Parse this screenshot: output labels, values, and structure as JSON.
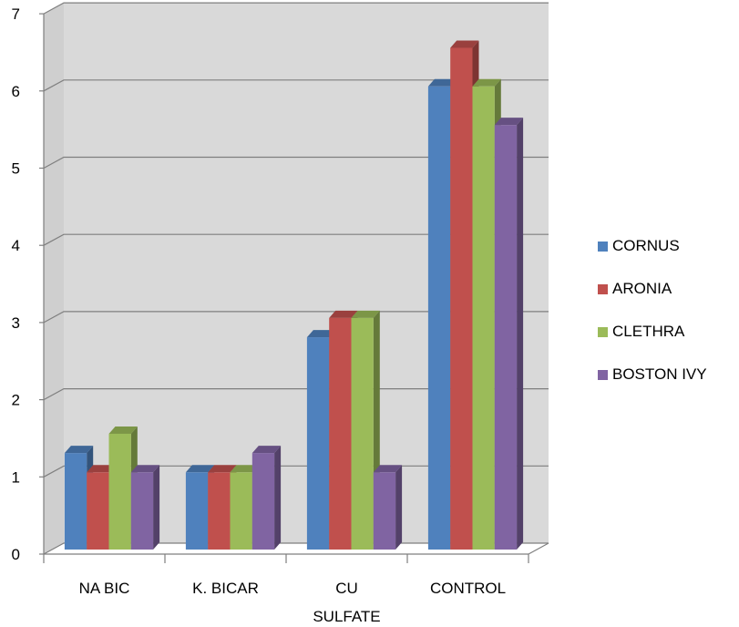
{
  "chart_data": {
    "type": "bar",
    "categories": [
      [
        "NA BIC"
      ],
      [
        "K. BICAR"
      ],
      [
        "CU",
        "SULFATE"
      ],
      [
        "CONTROL"
      ]
    ],
    "series": [
      {
        "name": "CORNUS",
        "values": [
          1.25,
          1.0,
          2.75,
          6.0
        ],
        "color": "#4f81bd"
      },
      {
        "name": "ARONIA",
        "values": [
          1.0,
          1.0,
          3.0,
          6.5
        ],
        "color": "#c0504d"
      },
      {
        "name": "CLETHRA",
        "values": [
          1.5,
          1.0,
          3.0,
          6.0
        ],
        "color": "#9bbb59"
      },
      {
        "name": "BOSTON IVY",
        "values": [
          1.0,
          1.25,
          1.0,
          5.5
        ],
        "color": "#8064a2"
      }
    ],
    "yticks": [
      "0",
      "1",
      "2",
      "3",
      "4",
      "5",
      "6",
      "7"
    ],
    "ylim": [
      0,
      7
    ],
    "grid": true,
    "legend_position": "right",
    "style": "3d-clustered-column"
  }
}
